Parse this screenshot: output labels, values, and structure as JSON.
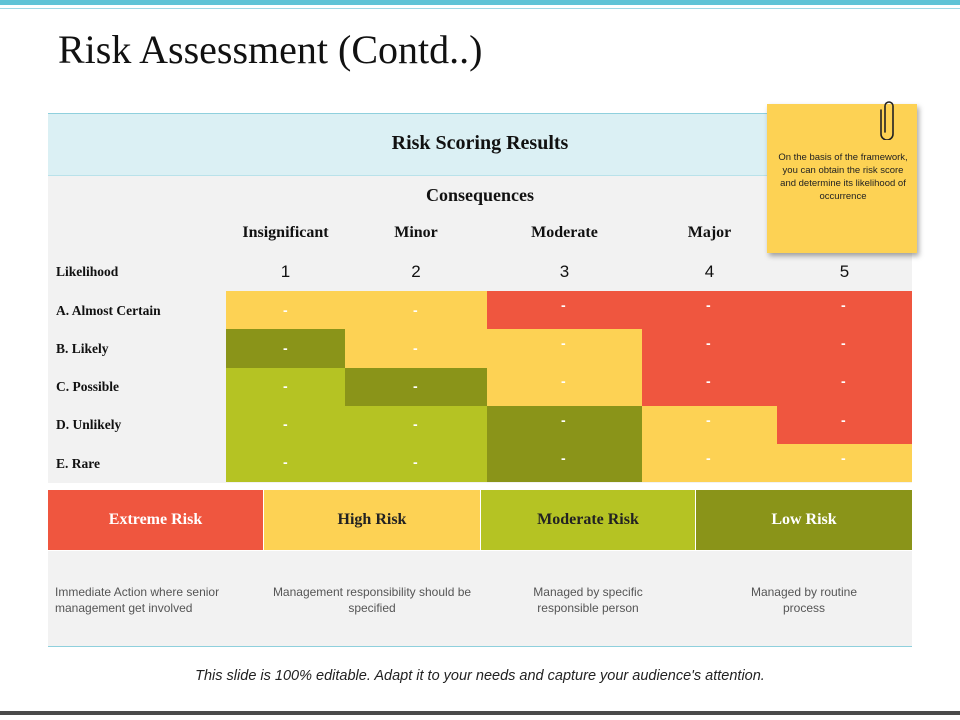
{
  "title": "Risk Assessment (Contd..)",
  "panel_title": "Risk Scoring Results",
  "consequences_label": "Consequences",
  "likelihood_label": "Likelihood",
  "columns": [
    {
      "label": "Insignificant",
      "number": "1"
    },
    {
      "label": "Minor",
      "number": "2"
    },
    {
      "label": "Moderate",
      "number": "3"
    },
    {
      "label": "Major",
      "number": "4"
    },
    {
      "label": "",
      "number": "5"
    }
  ],
  "rows": [
    {
      "label": "A. Almost Certain",
      "levels": [
        "high",
        "high",
        "extreme",
        "extreme",
        "extreme"
      ]
    },
    {
      "label": "B. Likely",
      "levels": [
        "low",
        "high",
        "high",
        "extreme",
        "extreme"
      ]
    },
    {
      "label": "C. Possible",
      "levels": [
        "moderate",
        "low",
        "high",
        "extreme",
        "extreme"
      ]
    },
    {
      "label": "D. Unlikely",
      "levels": [
        "moderate",
        "moderate",
        "low",
        "high",
        "extreme"
      ]
    },
    {
      "label": "E. Rare",
      "levels": [
        "moderate",
        "moderate",
        "low",
        "high",
        "high"
      ]
    }
  ],
  "cell_value": "-",
  "legend": [
    {
      "label": "Extreme Risk",
      "description": "Immediate Action where senior management get involved"
    },
    {
      "label": "High Risk",
      "description": "Management responsibility should be specified"
    },
    {
      "label": "Moderate Risk",
      "description": "Managed by specific responsible person"
    },
    {
      "label": "Low Risk",
      "description": "Managed by routine process"
    }
  ],
  "sticky_note": "On the basis of the framework, you can obtain the risk score and determine its likelihood of occurrence",
  "footer": "This slide is 100% editable. Adapt it to your needs and capture your audience's attention.",
  "colors": {
    "extreme": "#ef563f",
    "high": "#fdd254",
    "moderate": "#b5c323",
    "low": "#8a9419",
    "accent": "#5fc3d6"
  }
}
